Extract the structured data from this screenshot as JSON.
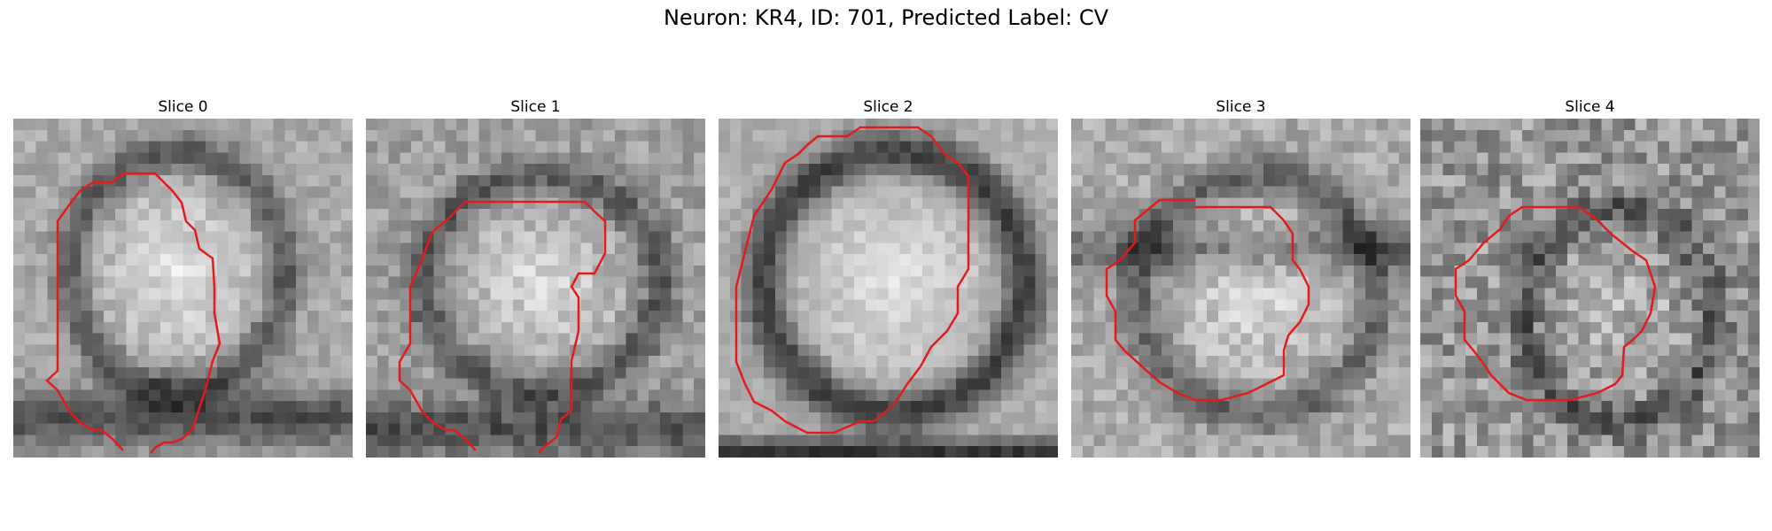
{
  "figure": {
    "title": "Neuron: KR4, ID: 701, Predicted Label: CV"
  },
  "panels": [
    {
      "title": "Slice 0",
      "contour_color": "#e41a1c"
    },
    {
      "title": "Slice 1",
      "contour_color": "#e41a1c"
    },
    {
      "title": "Slice 2",
      "contour_color": "#e41a1c"
    },
    {
      "title": "Slice 3",
      "contour_color": "#e41a1c"
    },
    {
      "title": "Slice 4",
      "contour_color": "#e41a1c"
    }
  ],
  "colormap": "gray"
}
